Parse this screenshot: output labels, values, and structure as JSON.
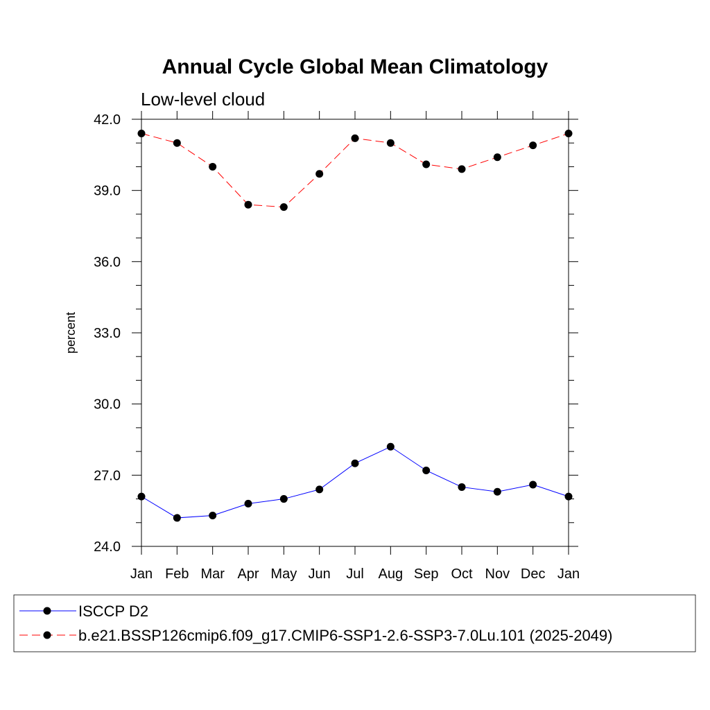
{
  "chart_data": {
    "type": "line",
    "title": "Annual Cycle Global Mean Climatology",
    "subtitle": "Low-level cloud",
    "ylabel": "percent",
    "xlabel": "",
    "categories": [
      "Jan",
      "Feb",
      "Mar",
      "Apr",
      "May",
      "Jun",
      "Jul",
      "Aug",
      "Sep",
      "Oct",
      "Nov",
      "Dec",
      "Jan"
    ],
    "ylim": [
      24.0,
      42.0
    ],
    "yticks": [
      "24.0",
      "27.0",
      "30.0",
      "33.0",
      "36.0",
      "39.0",
      "42.0"
    ],
    "grid": false,
    "legend_position": "bottom",
    "series": [
      {
        "name": "ISCCP D2",
        "color": "#0000ff",
        "dash": "solid",
        "marker": "circle",
        "values": [
          26.1,
          25.2,
          25.3,
          25.8,
          26.0,
          26.4,
          27.5,
          28.2,
          27.2,
          26.5,
          26.3,
          26.6,
          26.1
        ]
      },
      {
        "name": "b.e21.BSSP126cmip6.f09_g17.CMIP6-SSP1-2.6-SSP3-7.0Lu.101 (2025-2049)",
        "color": "#ff0000",
        "dash": "dashed",
        "marker": "circle",
        "values": [
          41.4,
          41.0,
          40.0,
          38.4,
          38.3,
          39.7,
          41.2,
          41.0,
          40.1,
          39.9,
          40.4,
          40.9,
          41.4
        ]
      }
    ]
  }
}
